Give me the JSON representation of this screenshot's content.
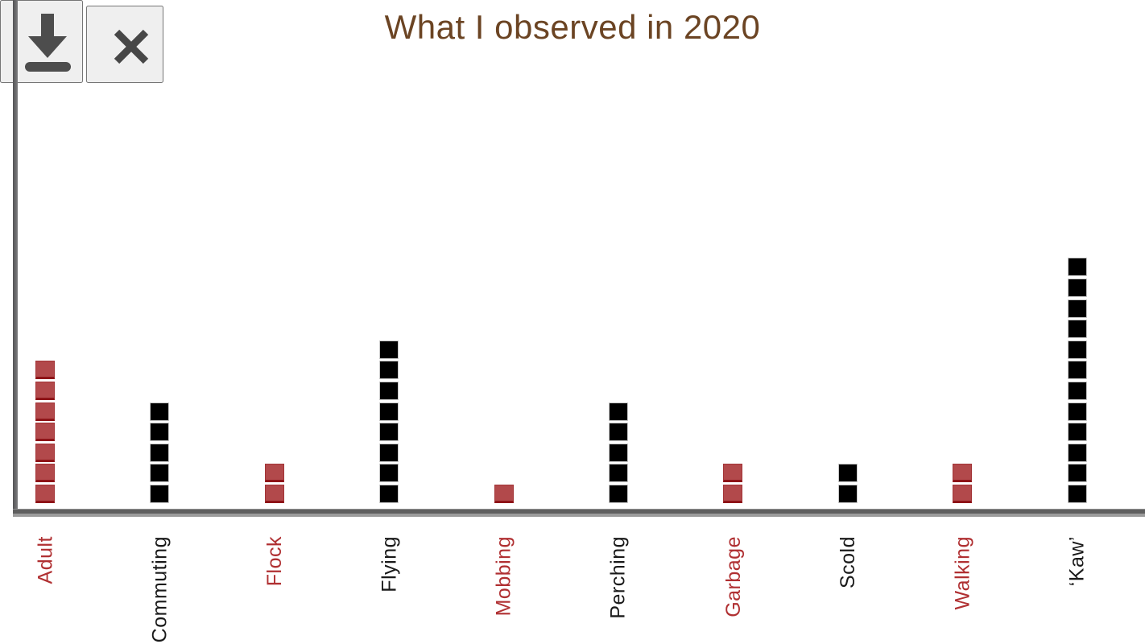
{
  "dialog": {
    "title": "What I observed in 2020",
    "icons": {
      "download": "download-icon",
      "close": "close-icon"
    }
  },
  "colors": {
    "red": "#b2494b",
    "red_border": "#8e1418",
    "black": "#000000",
    "black_border": "#c8c8c8",
    "red_label": "#b03032",
    "black_label": "#1a1a1a",
    "title": "#6b4423",
    "axis": "#5f5f5f",
    "icon_bg": "#d6d6d6",
    "icon_fg": "#4d4d4d"
  },
  "chart_data": {
    "type": "bar",
    "subtype": "unit-square-pictograph",
    "title": "What I observed in 2020",
    "xlabel": "",
    "ylabel": "",
    "grid": false,
    "legend": false,
    "unit_value": 1,
    "categories": [
      "Adult",
      "Commuting",
      "Flock",
      "Flying",
      "Mobbing",
      "Perching",
      "Garbage",
      "Scold",
      "Walking",
      "‘Kaw’"
    ],
    "values": [
      7,
      5,
      2,
      8,
      1,
      5,
      2,
      2,
      2,
      12
    ],
    "bar_color_keys": [
      "red",
      "black",
      "red",
      "black",
      "red",
      "black",
      "red",
      "black",
      "red",
      "black"
    ],
    "tick_label_color_keys": [
      "red",
      "black",
      "red",
      "black",
      "red",
      "black",
      "red",
      "black",
      "red",
      "black"
    ]
  }
}
